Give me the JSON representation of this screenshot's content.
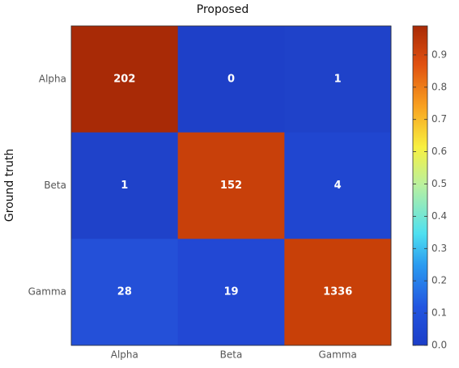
{
  "chart_data": {
    "type": "heatmap",
    "title": "Proposed",
    "y_label": "Ground truth",
    "x_categories": [
      "Alpha",
      "Beta",
      "Gamma"
    ],
    "y_categories": [
      "Alpha",
      "Beta",
      "Gamma"
    ],
    "values": [
      [
        202,
        0,
        1
      ],
      [
        1,
        152,
        4
      ],
      [
        28,
        19,
        1336
      ]
    ],
    "colors": [
      [
        "#a82a06",
        "#1e40c8",
        "#1f42c9"
      ],
      [
        "#1f42c9",
        "#c8400a",
        "#2046d0"
      ],
      [
        "#2450d8",
        "#2248d4",
        "#c84008"
      ]
    ],
    "colorbar_lim": [
      0,
      0.99
    ],
    "colorbar_ticks": [
      {
        "value": 0,
        "label": "0.0"
      },
      0.1,
      0.2,
      0.3,
      0.4,
      0.5,
      0.6,
      0.7,
      0.8,
      0.9
    ]
  }
}
